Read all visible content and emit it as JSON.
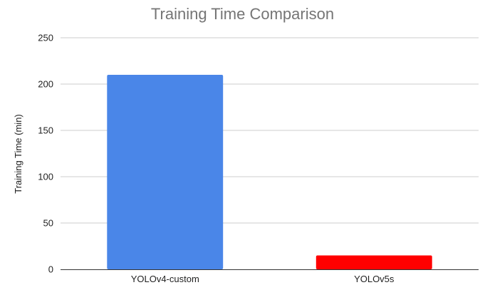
{
  "chart_data": {
    "type": "bar",
    "title": "Training Time Comparison",
    "xlabel": "",
    "ylabel": "Training Time (min)",
    "categories": [
      "YOLOv4-custom",
      "YOLOv5s"
    ],
    "values": [
      210,
      15
    ],
    "bar_colors": [
      "#4a86e8",
      "#ff0000"
    ],
    "ylim": [
      0,
      250
    ],
    "yticks": [
      0,
      50,
      100,
      150,
      200,
      250
    ],
    "grid": true,
    "legend": "none"
  }
}
